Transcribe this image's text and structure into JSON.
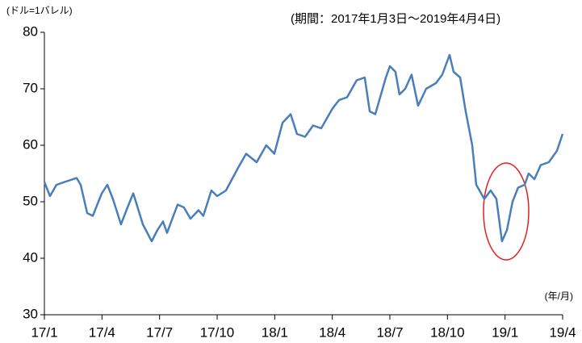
{
  "chart_data": {
    "type": "line",
    "y_unit_label": "(ドル=1バレル)",
    "period": "(期間：2017年1月3日～2019年4月4日)",
    "x_unit_label": "(年/月)",
    "xlim": [
      0,
      27
    ],
    "xticks": [
      {
        "value": 0,
        "label": "17/1"
      },
      {
        "value": 3,
        "label": "17/4"
      },
      {
        "value": 6,
        "label": "17/7"
      },
      {
        "value": 9,
        "label": "17/10"
      },
      {
        "value": 12,
        "label": "18/1"
      },
      {
        "value": 15,
        "label": "18/4"
      },
      {
        "value": 18,
        "label": "18/7"
      },
      {
        "value": 21,
        "label": "18/10"
      },
      {
        "value": 24,
        "label": "19/1"
      },
      {
        "value": 27,
        "label": "19/4"
      }
    ],
    "ylim": [
      30,
      80
    ],
    "yticks": [
      30,
      40,
      50,
      60,
      70,
      80
    ],
    "x": [
      0,
      0.29,
      0.63,
      1.05,
      1.68,
      1.89,
      2.23,
      2.52,
      2.99,
      3.28,
      3.57,
      3.99,
      4.33,
      4.63,
      5.13,
      5.59,
      5.89,
      6.18,
      6.39,
      6.94,
      7.27,
      7.61,
      8.03,
      8.28,
      8.7,
      9.0,
      9.46,
      10.09,
      10.51,
      11.06,
      11.56,
      11.98,
      12.41,
      12.83,
      13.16,
      13.58,
      14.0,
      14.42,
      15.01,
      15.35,
      15.77,
      16.27,
      16.69,
      16.95,
      17.24,
      17.79,
      18.0,
      18.29,
      18.5,
      18.8,
      19.13,
      19.47,
      19.89,
      20.4,
      20.73,
      21.11,
      21.32,
      21.66,
      21.95,
      22.29,
      22.5,
      22.92,
      23.25,
      23.55,
      23.84,
      24.1,
      24.39,
      24.68,
      25.02,
      25.23,
      25.53,
      25.86,
      26.28,
      26.7,
      27.0
    ],
    "series": [
      {
        "color": "#4a7ebb",
        "values": [
          53.5,
          51,
          53,
          53.5,
          54.2,
          53,
          48,
          47.5,
          51.5,
          53,
          50.5,
          46,
          49,
          51.5,
          46,
          43,
          45,
          46.5,
          44.5,
          49.5,
          49,
          47,
          48.5,
          47.5,
          52,
          51,
          52,
          56,
          58.5,
          57,
          60,
          58.5,
          64,
          65.5,
          62,
          61.5,
          63.5,
          63,
          66.5,
          68,
          68.5,
          71.5,
          72,
          66,
          65.5,
          72,
          74,
          73,
          69,
          70,
          72.5,
          67,
          70,
          71,
          72.5,
          76,
          73,
          72,
          66,
          60,
          53,
          50.5,
          52,
          50.5,
          43,
          45,
          50,
          52.5,
          53,
          55,
          54,
          56.5,
          57,
          59,
          62
        ]
      }
    ]
  }
}
